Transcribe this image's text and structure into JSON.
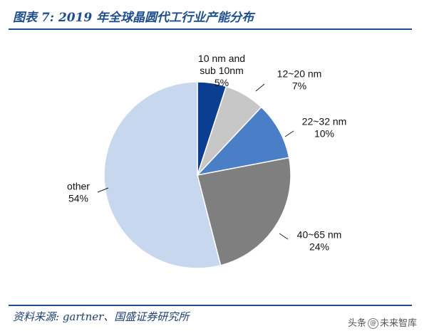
{
  "figure": {
    "title": "图表 7: 2019 年全球晶圆代工行业产能分布",
    "source": "资料来源: gartner、国盛证券研究所",
    "watermark_prefix": "头条",
    "watermark_logo": "@",
    "watermark_name": "未来智库"
  },
  "chart_data": {
    "type": "pie",
    "title": "",
    "legend": "none",
    "slices": [
      {
        "label_lines": [
          "10 nm and",
          "sub 10nm"
        ],
        "percent_label": "5%",
        "value": 5,
        "color": "#0b3d91"
      },
      {
        "label_lines": [
          "12~20 nm"
        ],
        "percent_label": "7%",
        "value": 7,
        "color": "#c7c7c7"
      },
      {
        "label_lines": [
          "22~32 nm"
        ],
        "percent_label": "10%",
        "value": 10,
        "color": "#4a7ec7"
      },
      {
        "label_lines": [
          "40~65 nm"
        ],
        "percent_label": "24%",
        "value": 24,
        "color": "#7f7f7f"
      },
      {
        "label_lines": [
          "other"
        ],
        "percent_label": "54%",
        "value": 54,
        "color": "#c6d7ee"
      }
    ]
  }
}
